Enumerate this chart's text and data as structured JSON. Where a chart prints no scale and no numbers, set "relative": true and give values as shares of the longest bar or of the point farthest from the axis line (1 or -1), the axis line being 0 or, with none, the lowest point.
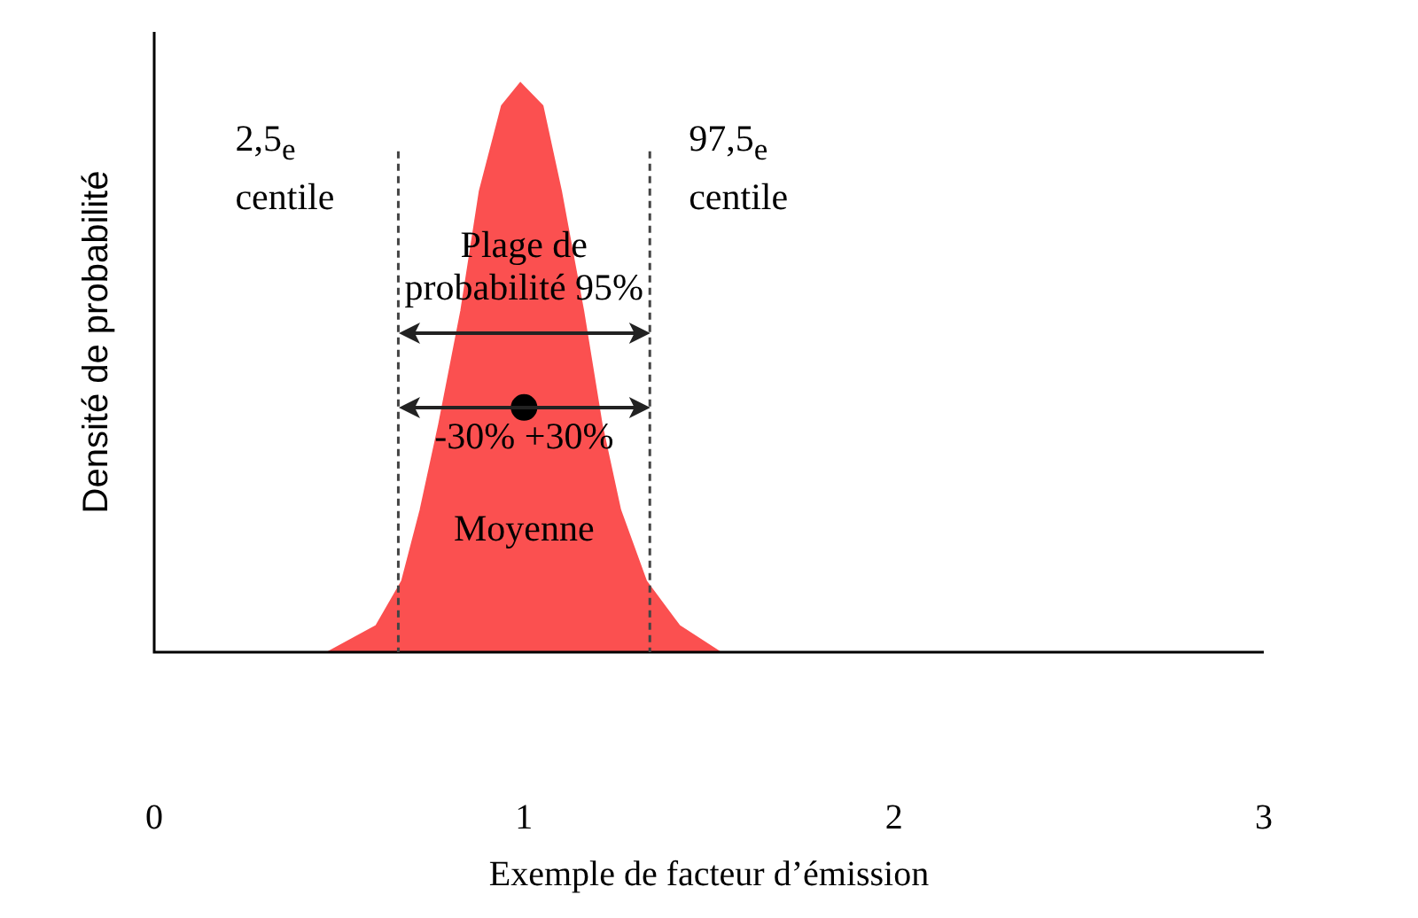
{
  "chart_data": {
    "type": "area",
    "relative": true,
    "xlabel": "Exemple de facteur d’émission",
    "ylabel": "Densité de probabilité",
    "xlim": [
      0,
      3
    ],
    "xticks": [
      0,
      1,
      2,
      3
    ],
    "grid": false,
    "legend": false,
    "series": [
      {
        "color": "#fb5050",
        "x": [
          0.47,
          0.6,
          0.67,
          0.72,
          0.77,
          0.83,
          0.88,
          0.94,
          0.99,
          1.05,
          1.1,
          1.16,
          1.21,
          1.26,
          1.33,
          1.42,
          1.53
        ],
        "values": [
          0,
          0.046,
          0.125,
          0.25,
          0.4,
          0.6,
          0.81,
          0.96,
          1,
          0.96,
          0.81,
          0.6,
          0.4,
          0.25,
          0.125,
          0.046,
          0
        ]
      },
      {
        "type": "scatter",
        "color": "#000000",
        "marker": "circle",
        "x": [
          1
        ],
        "values": [
          0.43
        ]
      }
    ],
    "ref_lines": [
      {
        "axis": "x",
        "value": 0.66,
        "label": "2,5$_{e}$ centile",
        "line_style": "dashed",
        "color": "#444444"
      },
      {
        "axis": "x",
        "value": 1.34,
        "label": "97,5$_{e}$ centile",
        "line_style": "dashed",
        "color": "#444444"
      }
    ],
    "annotations": [
      "Plage de probabilité 95%",
      "-30% +30%",
      "Moyenne"
    ]
  }
}
